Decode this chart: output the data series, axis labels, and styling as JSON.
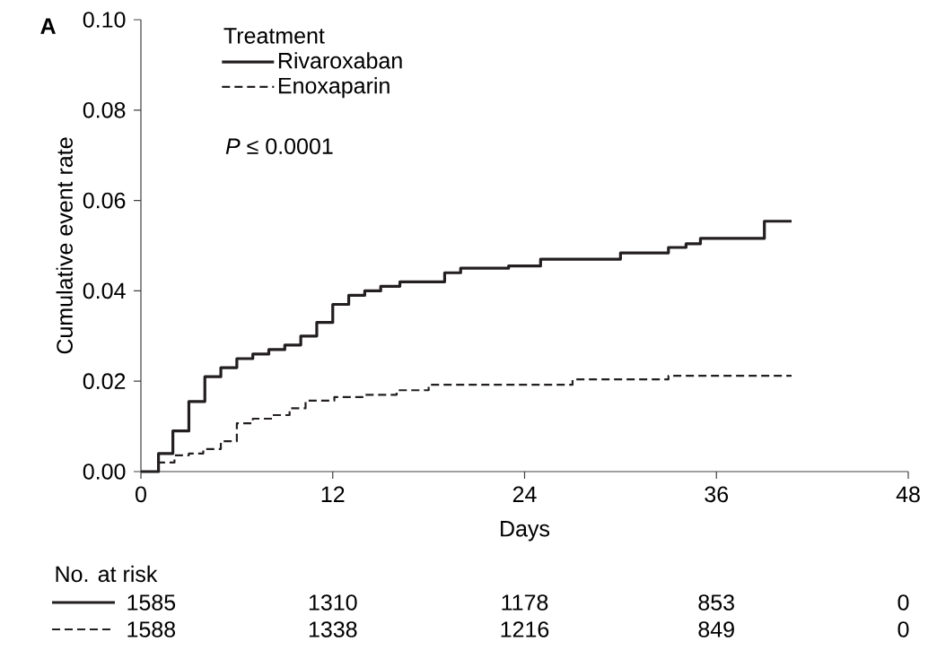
{
  "chart_data": {
    "type": "step",
    "xlabel": "Days",
    "ylabel": "Cumulative event rate",
    "legend_title": "Treatment",
    "xlim": [
      0,
      48
    ],
    "xticks": [
      0,
      12,
      24,
      36,
      48
    ],
    "ylim": [
      0,
      0.1
    ],
    "yticks": [
      {
        "value": 0,
        "label": "0.00"
      },
      {
        "value": 0.02,
        "label": "0.02"
      },
      {
        "value": 0.04,
        "label": "0.04"
      },
      {
        "value": 0.06,
        "label": "0.06"
      },
      {
        "value": 0.08,
        "label": "0.08"
      },
      {
        "value": 0.1,
        "label": "0.10"
      }
    ],
    "legend": "top left",
    "series": [
      {
        "name": "Rivaroxaban",
        "color": "#231f20",
        "line_style": "solid",
        "x": [
          0,
          1.1,
          2,
          3,
          4,
          5,
          6,
          7,
          8,
          9,
          10,
          11,
          12,
          13,
          14,
          15,
          16.2,
          19,
          20,
          23,
          25,
          30,
          33,
          34.1,
          35,
          39,
          40.7
        ],
        "values": [
          0,
          0.004,
          0.009,
          0.0155,
          0.021,
          0.023,
          0.025,
          0.026,
          0.027,
          0.028,
          0.03,
          0.033,
          0.037,
          0.039,
          0.04,
          0.041,
          0.042,
          0.044,
          0.045,
          0.0455,
          0.047,
          0.0484,
          0.0496,
          0.0504,
          0.0516,
          0.0554,
          0.0554
        ]
      },
      {
        "name": "Enoxaparin",
        "color": "#231f20",
        "line_style": "dashed",
        "x": [
          0,
          1.1,
          2.1,
          3,
          3.9,
          5,
          6,
          7,
          8.2,
          9.3,
          10.3,
          12.1,
          14,
          16,
          18,
          27,
          33,
          40.7
        ],
        "values": [
          0,
          0.002,
          0.0036,
          0.004,
          0.005,
          0.0067,
          0.0107,
          0.0117,
          0.0125,
          0.014,
          0.0157,
          0.0165,
          0.017,
          0.018,
          0.0192,
          0.0204,
          0.0212,
          0.0212
        ]
      }
    ],
    "annotations": [
      "A",
      "*P* ≤ 0.0001",
      "No. at risk",
      "1585",
      "1310",
      "1178",
      "853",
      "0",
      "1588",
      "1338",
      "1216",
      "849",
      "0"
    ]
  }
}
